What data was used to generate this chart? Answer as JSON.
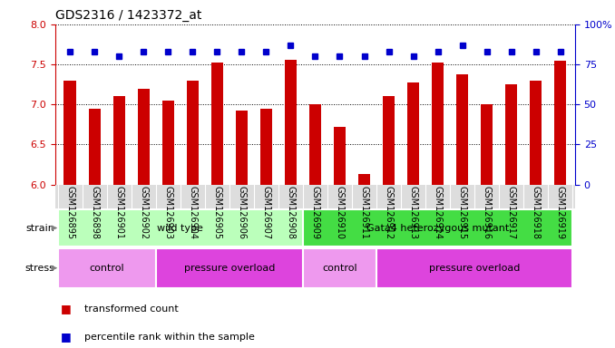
{
  "title": "GDS2316 / 1423372_at",
  "samples": [
    "GSM126895",
    "GSM126898",
    "GSM126901",
    "GSM126902",
    "GSM126903",
    "GSM126904",
    "GSM126905",
    "GSM126906",
    "GSM126907",
    "GSM126908",
    "GSM126909",
    "GSM126910",
    "GSM126911",
    "GSM126912",
    "GSM126913",
    "GSM126914",
    "GSM126915",
    "GSM126916",
    "GSM126917",
    "GSM126918",
    "GSM126919"
  ],
  "transformed_count": [
    7.3,
    6.95,
    7.1,
    7.2,
    7.05,
    7.3,
    7.52,
    6.92,
    6.95,
    7.56,
    7.0,
    6.72,
    6.13,
    7.1,
    7.27,
    7.52,
    7.38,
    7.0,
    7.25,
    7.3,
    7.55
  ],
  "percentile_rank": [
    83,
    83,
    80,
    83,
    83,
    83,
    83,
    83,
    83,
    87,
    80,
    80,
    80,
    83,
    80,
    83,
    87,
    83,
    83,
    83,
    83
  ],
  "ylim_left": [
    6.0,
    8.0
  ],
  "ylim_right": [
    0,
    100
  ],
  "yticks_left": [
    6.0,
    6.5,
    7.0,
    7.5,
    8.0
  ],
  "yticks_right": [
    0,
    25,
    50,
    75,
    100
  ],
  "bar_color": "#cc0000",
  "dot_color": "#0000cc",
  "strain_groups": [
    {
      "label": "wild type",
      "start": 0,
      "end": 10,
      "color": "#bbffbb"
    },
    {
      "label": "Gata4 heterozygous mutant",
      "start": 10,
      "end": 21,
      "color": "#44dd44"
    }
  ],
  "stress_groups": [
    {
      "label": "control",
      "start": 0,
      "end": 4,
      "color": "#ee99ee"
    },
    {
      "label": "pressure overload",
      "start": 4,
      "end": 10,
      "color": "#dd44dd"
    },
    {
      "label": "control",
      "start": 10,
      "end": 13,
      "color": "#ee99ee"
    },
    {
      "label": "pressure overload",
      "start": 13,
      "end": 21,
      "color": "#dd44dd"
    }
  ],
  "legend_red_label": "transformed count",
  "legend_blue_label": "percentile rank within the sample",
  "bar_width": 0.5,
  "tick_label_fontsize": 7,
  "axis_color_left": "#cc0000",
  "axis_color_right": "#0000cc",
  "xticklabel_bg": "#dddddd"
}
